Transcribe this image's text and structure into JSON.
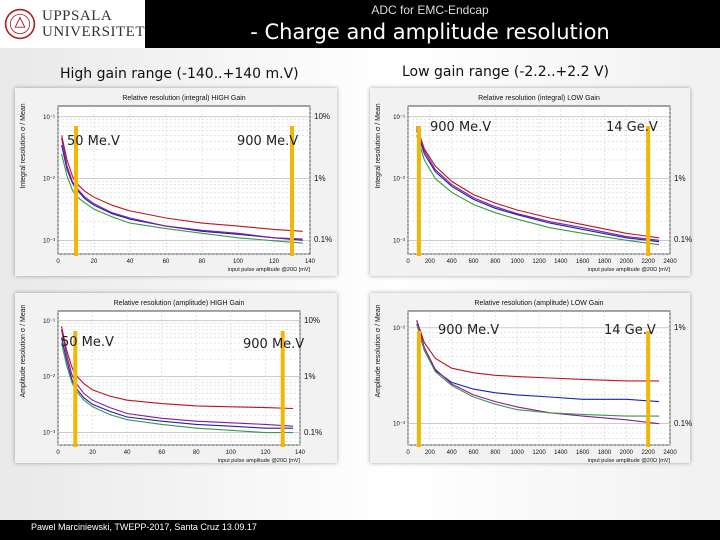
{
  "logo": {
    "line1": "UPPSALA",
    "line2": "UNIVERSITET"
  },
  "header": {
    "top": "ADC for EMC-Endcap",
    "main": "- Charge and amplitude resolution"
  },
  "sections": {
    "left": "High gain range (-140..+140 m.V)",
    "right": "Low gain range (-2.2..+2.2 V)"
  },
  "footer": "Pawel Marciniewski, TWEPP-2017, Santa Cruz 13.09.17",
  "colors": {
    "marker": "#f2b705",
    "red": "#c0141c",
    "blue": "#1b22b0",
    "purple": "#8a1a9a",
    "green": "#3a9a46"
  },
  "chart_data": [
    {
      "type": "line",
      "title": "Relative resolution (integral) HIGH Gain",
      "xlabel": "input pulse amplitude @20Ω [mV]",
      "ylabel": "Integral resolution σ / Mean",
      "ylog": true,
      "xlim": [
        0,
        140
      ],
      "ylim": [
        0.0006,
        0.15
      ],
      "xticks": [
        "0",
        "20",
        "40",
        "60",
        "80",
        "100",
        "120",
        "140"
      ],
      "yticks": [
        "10⁻¹",
        "10⁻²",
        "10⁻³"
      ],
      "yticks_values": [
        0.1,
        0.01,
        0.001
      ],
      "right_labels": [
        {
          "text": "10%",
          "value": 0.1
        },
        {
          "text": "1%",
          "value": 0.01
        },
        {
          "text": "0.1%",
          "value": 0.001
        }
      ],
      "markers": [
        {
          "x": 10,
          "label": "50 Me.V"
        },
        {
          "x": 130,
          "label": "900 Me.V"
        }
      ],
      "series": [
        {
          "color": "red",
          "x": [
            2,
            5,
            8,
            10,
            15,
            20,
            30,
            40,
            60,
            80,
            100,
            120,
            136
          ],
          "y": [
            0.05,
            0.02,
            0.011,
            0.0085,
            0.0062,
            0.005,
            0.0037,
            0.003,
            0.0023,
            0.0019,
            0.0017,
            0.0015,
            0.0014
          ]
        },
        {
          "color": "blue",
          "x": [
            2,
            5,
            8,
            10,
            15,
            20,
            30,
            40,
            60,
            80,
            100,
            120,
            136
          ],
          "y": [
            0.035,
            0.014,
            0.0085,
            0.0068,
            0.0047,
            0.0037,
            0.0027,
            0.0022,
            0.0017,
            0.0014,
            0.00125,
            0.0011,
            0.001
          ]
        },
        {
          "color": "purple",
          "x": [
            2,
            5,
            8,
            10,
            15,
            20,
            30,
            40,
            60,
            80,
            100,
            120,
            136
          ],
          "y": [
            0.045,
            0.016,
            0.009,
            0.0072,
            0.005,
            0.0039,
            0.0028,
            0.0023,
            0.0017,
            0.00145,
            0.0013,
            0.0011,
            0.00105
          ]
        },
        {
          "color": "green",
          "x": [
            2,
            5,
            8,
            10,
            15,
            20,
            30,
            40,
            60,
            80,
            100,
            120,
            136
          ],
          "y": [
            0.025,
            0.011,
            0.0065,
            0.0052,
            0.004,
            0.0032,
            0.0024,
            0.0019,
            0.00155,
            0.0013,
            0.0011,
            0.00098,
            0.0009
          ]
        }
      ]
    },
    {
      "type": "line",
      "title": "Relative resolution (integral) LOW Gain",
      "xlabel": "input pulse amplitude @20Ω [mV]",
      "ylabel": "Integral resolution σ / Mean",
      "ylog": true,
      "xlim": [
        0,
        2400
      ],
      "ylim": [
        0.0006,
        0.15
      ],
      "xticks": [
        "0",
        "200",
        "400",
        "600",
        "800",
        "1000",
        "1200",
        "1400",
        "1600",
        "1800",
        "2000",
        "2200",
        "2400"
      ],
      "yticks": [
        "10⁻¹",
        "10⁻²",
        "10⁻³"
      ],
      "yticks_values": [
        0.1,
        0.01,
        0.001
      ],
      "right_labels": [
        {
          "text": "1%",
          "value": 0.01
        },
        {
          "text": "0.1%",
          "value": 0.001
        }
      ],
      "markers": [
        {
          "x": 100,
          "label": "900 Me.V"
        },
        {
          "x": 2200,
          "label": "14 Ge.V"
        }
      ],
      "series": [
        {
          "color": "red",
          "x": [
            80,
            150,
            250,
            400,
            600,
            800,
            1000,
            1300,
            1600,
            2000,
            2300
          ],
          "y": [
            0.07,
            0.03,
            0.016,
            0.009,
            0.0055,
            0.004,
            0.0031,
            0.0023,
            0.0018,
            0.0013,
            0.0011
          ]
        },
        {
          "color": "blue",
          "x": [
            80,
            150,
            250,
            400,
            600,
            800,
            1000,
            1300,
            1600,
            2000,
            2300
          ],
          "y": [
            0.06,
            0.025,
            0.013,
            0.0075,
            0.0046,
            0.0033,
            0.0026,
            0.0019,
            0.0015,
            0.0011,
            0.00095
          ]
        },
        {
          "color": "purple",
          "x": [
            80,
            150,
            250,
            400,
            600,
            800,
            1000,
            1300,
            1600,
            2000,
            2300
          ],
          "y": [
            0.065,
            0.028,
            0.014,
            0.008,
            0.0049,
            0.0035,
            0.0027,
            0.002,
            0.0016,
            0.00115,
            0.001
          ]
        },
        {
          "color": "green",
          "x": [
            80,
            150,
            250,
            400,
            600,
            800,
            1000,
            1300,
            1600,
            2000,
            2300
          ],
          "y": [
            0.05,
            0.02,
            0.01,
            0.006,
            0.0038,
            0.0028,
            0.0022,
            0.0016,
            0.0013,
            0.001,
            0.00085
          ]
        }
      ]
    },
    {
      "type": "line",
      "title": "Relative resolution (amplitude) HIGH Gain",
      "xlabel": "input pulse amplitude @20Ω [mV]",
      "ylabel": "Amplitude resolution σ / Mean",
      "ylog": true,
      "xlim": [
        0,
        140
      ],
      "ylim": [
        0.0006,
        0.15
      ],
      "xticks": [
        "0",
        "20",
        "40",
        "60",
        "80",
        "100",
        "120",
        "140"
      ],
      "yticks": [
        "10⁻¹",
        "10⁻²",
        "10⁻³"
      ],
      "yticks_values": [
        0.1,
        0.01,
        0.001
      ],
      "right_labels": [
        {
          "text": "10%",
          "value": 0.1
        },
        {
          "text": "1%",
          "value": 0.01
        },
        {
          "text": "0.1%",
          "value": 0.001
        }
      ],
      "markers": [
        {
          "x": 10,
          "label": "50 Me.V"
        },
        {
          "x": 130,
          "label": "900 Me.V"
        }
      ],
      "series": [
        {
          "color": "red",
          "x": [
            2,
            5,
            8,
            10,
            15,
            20,
            30,
            40,
            60,
            80,
            100,
            120,
            136
          ],
          "y": [
            0.08,
            0.03,
            0.015,
            0.011,
            0.0075,
            0.0058,
            0.0045,
            0.0038,
            0.0033,
            0.003,
            0.0029,
            0.0028,
            0.0027
          ]
        },
        {
          "color": "blue",
          "x": [
            2,
            5,
            8,
            10,
            15,
            20,
            30,
            40,
            60,
            80,
            100,
            120,
            136
          ],
          "y": [
            0.05,
            0.02,
            0.009,
            0.0065,
            0.0042,
            0.0032,
            0.0024,
            0.0019,
            0.0016,
            0.0014,
            0.0013,
            0.0012,
            0.0012
          ]
        },
        {
          "color": "purple",
          "x": [
            2,
            5,
            8,
            10,
            15,
            20,
            30,
            40,
            60,
            80,
            100,
            120,
            136
          ],
          "y": [
            0.07,
            0.025,
            0.011,
            0.008,
            0.005,
            0.0038,
            0.0028,
            0.0022,
            0.0018,
            0.0016,
            0.0015,
            0.0014,
            0.0013
          ]
        },
        {
          "color": "green",
          "x": [
            2,
            5,
            8,
            10,
            15,
            20,
            30,
            40,
            60,
            80,
            100,
            120,
            136
          ],
          "y": [
            0.04,
            0.016,
            0.008,
            0.0058,
            0.0038,
            0.0029,
            0.0021,
            0.0017,
            0.0014,
            0.0012,
            0.0011,
            0.001,
            0.001
          ]
        }
      ]
    },
    {
      "type": "line",
      "title": "Relative resolution (amplitude) LOW Gain",
      "xlabel": "input pulse amplitude @20Ω [mV]",
      "ylabel": "Amplitude resolution σ / Mean",
      "ylog": true,
      "xlim": [
        0,
        2400
      ],
      "ylim": [
        0.0006,
        0.015
      ],
      "xticks": [
        "0",
        "200",
        "400",
        "600",
        "800",
        "1000",
        "1200",
        "1400",
        "1600",
        "1800",
        "2000",
        "2200",
        "2400"
      ],
      "yticks": [
        "10⁻²",
        "10⁻³"
      ],
      "yticks_values": [
        0.01,
        0.001
      ],
      "right_labels": [
        {
          "text": "1%",
          "value": 0.01
        },
        {
          "text": "0.1%",
          "value": 0.001
        }
      ],
      "markers": [
        {
          "x": 100,
          "label": "900 Me.V"
        },
        {
          "x": 2200,
          "label": "14 Ge.V"
        }
      ],
      "series": [
        {
          "color": "red",
          "x": [
            80,
            150,
            250,
            400,
            600,
            800,
            1000,
            1300,
            1600,
            2000,
            2300
          ],
          "y": [
            0.012,
            0.007,
            0.0048,
            0.0038,
            0.0034,
            0.0032,
            0.0031,
            0.003,
            0.0029,
            0.0028,
            0.0028
          ]
        },
        {
          "color": "blue",
          "x": [
            80,
            150,
            250,
            400,
            600,
            800,
            1000,
            1300,
            1600,
            2000,
            2300
          ],
          "y": [
            0.011,
            0.0058,
            0.0036,
            0.0027,
            0.0023,
            0.0021,
            0.002,
            0.0019,
            0.0018,
            0.0018,
            0.0017
          ]
        },
        {
          "color": "purple",
          "x": [
            80,
            150,
            250,
            400,
            600,
            800,
            1000,
            1300,
            1600,
            2000,
            2300
          ],
          "y": [
            0.012,
            0.0062,
            0.0037,
            0.0026,
            0.002,
            0.0017,
            0.0015,
            0.0013,
            0.0012,
            0.0011,
            0.001
          ]
        },
        {
          "color": "green",
          "x": [
            80,
            150,
            250,
            400,
            600,
            800,
            1000,
            1300,
            1600,
            2000,
            2300
          ],
          "y": [
            0.011,
            0.0058,
            0.0035,
            0.0025,
            0.0019,
            0.0016,
            0.0014,
            0.0013,
            0.00125,
            0.0012,
            0.0012
          ]
        }
      ]
    }
  ]
}
